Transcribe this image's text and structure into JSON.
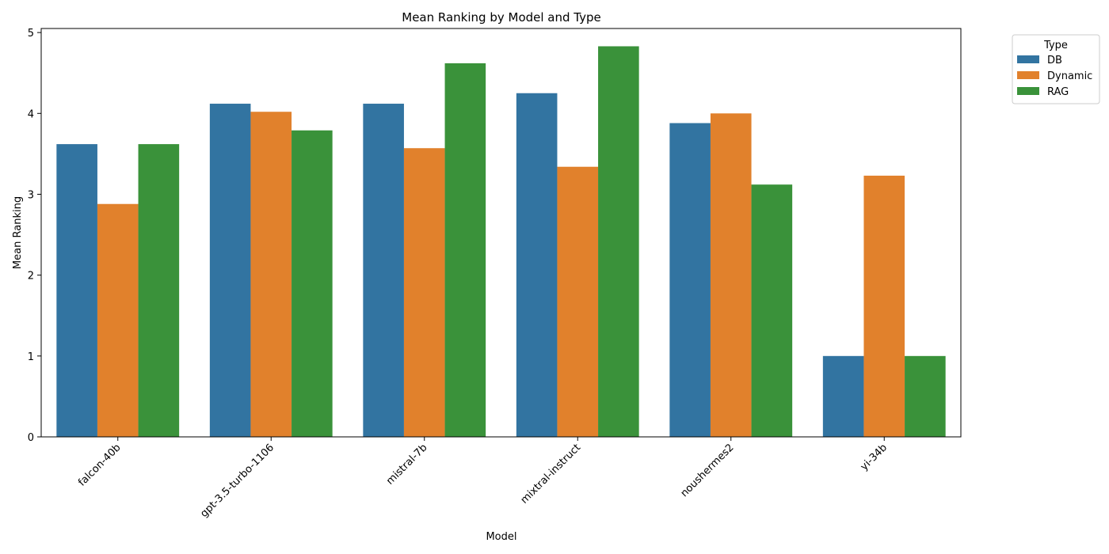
{
  "chart_data": {
    "type": "bar",
    "title": "Mean Ranking by Model and Type",
    "xlabel": "Model",
    "ylabel": "Mean Ranking",
    "categories": [
      "falcon-40b",
      "gpt-3.5-turbo-1106",
      "mistral-7b",
      "mixtral-instruct",
      "noushermes2",
      "yi-34b"
    ],
    "series": [
      {
        "name": "DB",
        "color": "#3274a1",
        "values": [
          3.62,
          4.12,
          4.12,
          4.25,
          3.88,
          1.0
        ]
      },
      {
        "name": "Dynamic",
        "color": "#e1812c",
        "values": [
          2.88,
          4.02,
          3.57,
          3.34,
          4.0,
          3.23
        ]
      },
      {
        "name": "RAG",
        "color": "#3a923a",
        "values": [
          3.62,
          3.79,
          4.62,
          4.83,
          3.12,
          1.0
        ]
      }
    ],
    "ylim": [
      0,
      5.05
    ],
    "yticks": [
      0,
      1,
      2,
      3,
      4,
      5
    ],
    "xtick_rotation": 45,
    "grid": false,
    "legend": {
      "title": "Type",
      "placement": "outside-top-right"
    }
  }
}
